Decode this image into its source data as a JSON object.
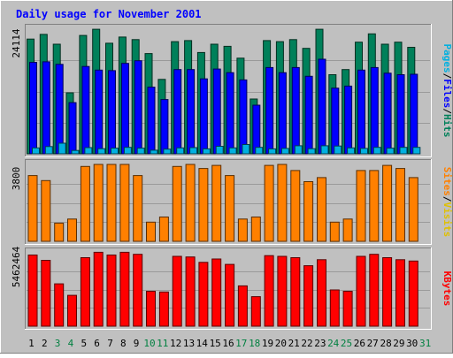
{
  "chart_data": {
    "type": "bar",
    "title": "Daily usage for November 2001",
    "categories": [
      "1",
      "2",
      "3",
      "4",
      "5",
      "6",
      "7",
      "8",
      "9",
      "10",
      "11",
      "12",
      "13",
      "14",
      "15",
      "16",
      "17",
      "18",
      "19",
      "20",
      "21",
      "22",
      "23",
      "24",
      "25",
      "26",
      "27",
      "28",
      "29",
      "30",
      "31"
    ],
    "weekend_days": [
      "3",
      "4",
      "10",
      "11",
      "17",
      "18",
      "24",
      "25",
      "31"
    ],
    "panels": [
      {
        "name": "pages-files-hits",
        "ylim": [
          0,
          24114
        ],
        "tick_label": "24114",
        "legend": [
          {
            "text": "Pages",
            "color": "#00b0e0"
          },
          {
            "text": "Files",
            "color": "#0000ff"
          },
          {
            "text": "Hits",
            "color": "#00805a"
          }
        ],
        "series": [
          {
            "name": "Hits",
            "color": "#00805a",
            "values": [
              22200,
              23100,
              21200,
              11800,
              22900,
              24100,
              21400,
              22600,
              22100,
              19400,
              14400,
              21700,
              21900,
              19600,
              21200,
              20800,
              18500,
              10600,
              21900,
              21700,
              22100,
              20400,
              24100,
              15300,
              16300,
              21600,
              23200,
              21200,
              21600,
              20600,
              null
            ]
          },
          {
            "name": "Files",
            "color": "#0000ff",
            "values": [
              17700,
              17800,
              17300,
              9900,
              16900,
              16200,
              16100,
              17500,
              18000,
              12900,
              10500,
              16300,
              16300,
              14500,
              16400,
              15700,
              14300,
              9400,
              16700,
              15700,
              16700,
              15000,
              18300,
              12700,
              13100,
              16200,
              16700,
              15600,
              15300,
              15400,
              null
            ]
          },
          {
            "name": "Pages",
            "color": "#00b0e0",
            "values": [
              1150,
              1400,
              2050,
              650,
              1200,
              1000,
              1100,
              1250,
              1100,
              700,
              900,
              1150,
              1200,
              950,
              1450,
              1150,
              1800,
              1250,
              950,
              1050,
              1550,
              1000,
              1550,
              1500,
              1150,
              1050,
              1250,
              1100,
              1250,
              1250,
              null
            ]
          }
        ]
      },
      {
        "name": "sites-visits",
        "ylim": [
          0,
          3800
        ],
        "tick_label": "3800",
        "legend": [
          {
            "text": "Sites",
            "color": "#ff8000"
          },
          {
            "text": "Visits",
            "color": "#e0c000"
          }
        ],
        "series": [
          {
            "name": "Visits",
            "color": "#ff8000",
            "values": [
              3250,
              3000,
              900,
              1100,
              3700,
              3800,
              3800,
              3800,
              3250,
              950,
              1200,
              3700,
              3800,
              3600,
              3750,
              3250,
              1100,
              1200,
              3750,
              3800,
              3500,
              2950,
              3150,
              950,
              1100,
              3500,
              3500,
              3750,
              3600,
              3150,
              null
            ]
          }
        ]
      },
      {
        "name": "kbytes",
        "ylim": [
          0,
          5462464
        ],
        "tick_label": "5462464",
        "legend": [
          {
            "text": "KBytes",
            "color": "#ff0000"
          }
        ],
        "series": [
          {
            "name": "KBytes",
            "color": "#ff0000",
            "values": [
              5300000,
              4900000,
              3150000,
              2300000,
              5100000,
              5500000,
              5300000,
              5500000,
              5350000,
              2600000,
              2550000,
              5200000,
              5150000,
              4750000,
              5000000,
              4600000,
              3000000,
              2200000,
              5250000,
              5200000,
              5100000,
              4500000,
              4950000,
              2700000,
              2600000,
              5200000,
              5350000,
              5100000,
              4950000,
              4850000,
              null
            ]
          }
        ]
      }
    ]
  }
}
